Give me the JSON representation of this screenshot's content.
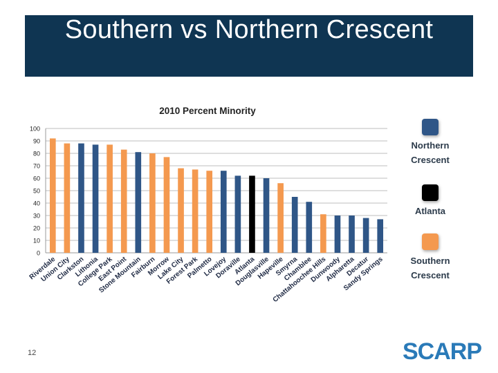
{
  "slide": {
    "title": "Southern vs Northern Crescent",
    "page_number": "12",
    "logo_text": "SCARP",
    "logo_tagline": ""
  },
  "legend": {
    "items": [
      {
        "label_line1": "Northern",
        "label_line2": "Crescent",
        "color": "#2f5687"
      },
      {
        "label_line1": "Atlanta",
        "label_line2": "",
        "color": "#000000"
      },
      {
        "label_line1": "Southern",
        "label_line2": "Crescent",
        "color": "#f4994f"
      }
    ]
  },
  "colors": {
    "northern": "#2f5687",
    "atlanta": "#000000",
    "southern": "#f4994f"
  },
  "chart_data": {
    "type": "bar",
    "title": "2010 Percent Minority",
    "xlabel": "",
    "ylabel": "",
    "ylim": [
      0,
      100
    ],
    "yticks": [
      0,
      10,
      20,
      30,
      40,
      50,
      60,
      70,
      80,
      90,
      100
    ],
    "grid": true,
    "legend_position": "right",
    "categories": [
      "Riverdale",
      "Union City",
      "Clarkston",
      "Lithonia",
      "College Park",
      "East Point",
      "Stone Mountain",
      "Fairburn",
      "Morrow",
      "Lake City",
      "Forest Park",
      "Palmetto",
      "Lovejoy",
      "Doraville",
      "Atlanta",
      "Douglasville",
      "Hapeville",
      "Smyrna",
      "Chamblee",
      "Chattahoochee Hills",
      "Dunwoody",
      "Alpharetta",
      "Decatur",
      "Sandy Springs"
    ],
    "values": [
      92,
      88,
      88,
      87,
      87,
      83,
      81,
      80,
      77,
      68,
      67,
      66,
      66,
      62,
      62,
      60,
      56,
      45,
      41,
      31,
      30,
      30,
      28,
      27
    ],
    "groups": [
      "southern",
      "southern",
      "northern",
      "northern",
      "southern",
      "southern",
      "northern",
      "southern",
      "southern",
      "southern",
      "southern",
      "southern",
      "northern",
      "northern",
      "atlanta",
      "northern",
      "southern",
      "northern",
      "northern",
      "southern",
      "northern",
      "northern",
      "northern",
      "northern"
    ]
  }
}
